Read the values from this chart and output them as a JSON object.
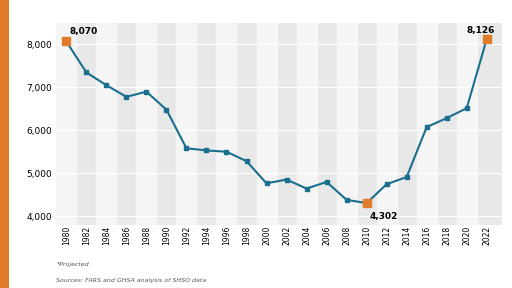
{
  "years": [
    1980,
    1982,
    1984,
    1986,
    1988,
    1990,
    1992,
    1994,
    1996,
    1998,
    2000,
    2002,
    2004,
    2006,
    2008,
    2010,
    2012,
    2014,
    2016,
    2018,
    2020,
    2022
  ],
  "values": [
    8070,
    7350,
    7050,
    6780,
    6900,
    6480,
    5580,
    5530,
    5500,
    5280,
    4763,
    4851,
    4641,
    4795,
    4378,
    4302,
    4743,
    4910,
    6075,
    6283,
    6516,
    8126
  ],
  "highlighted_points": [
    1980,
    2010,
    2022
  ],
  "highlighted_values": [
    8070,
    4302,
    8126
  ],
  "line_color": "#1a6e8e",
  "highlight_color": "#e07b2a",
  "marker_color": "#1a6e8e",
  "bg_color": "#e8e8e8",
  "stripe_color": "#f5f5f5",
  "fig_bg_color": "#ffffff",
  "ylim": [
    3800,
    8500
  ],
  "yticks": [
    4000,
    5000,
    6000,
    7000,
    8000
  ],
  "annotation_1980": "8,070",
  "annotation_2010": "4,302",
  "annotation_2022": "8,126",
  "footnote1": "*Projected",
  "footnote2": "Sources: FARS and GHSA analysis of SHSO data",
  "left_bar_color": "#e07b2a"
}
